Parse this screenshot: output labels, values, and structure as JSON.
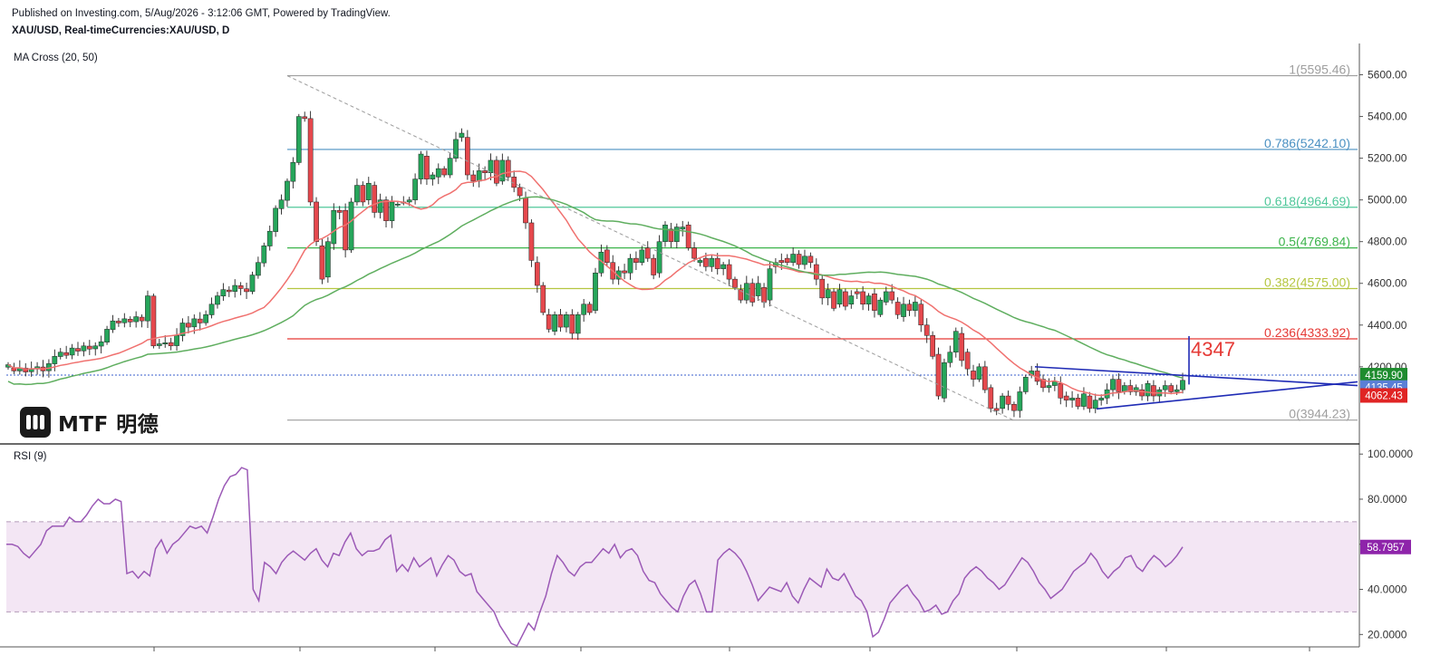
{
  "header": {
    "published": "Published on Investing.com, 5/Aug/2026 - 3:12:06 GMT, Powered by TradingView.",
    "symbol": "XAU/USD, Real-timeCurrencies:XAU/USD, D",
    "indicator": "MA Cross (20, 50)",
    "rsi_label": "RSI (9)"
  },
  "logo": {
    "text": "MTF 明德",
    "icon": "mtf-logo-icon"
  },
  "colors": {
    "up": "#26a65b",
    "down": "#e5484d",
    "ma20": "#f0716f",
    "ma50": "#5fae5f",
    "triangle": "#1f2bb5",
    "rsi": "#9b59b6",
    "rsi_band": "#f3e6f4",
    "fib_1": "#9e9e9e",
    "fib_786": "#4a90c2",
    "fib_618": "#4fc79a",
    "fib_5": "#3cb44b",
    "fib_382": "#b5c640",
    "fib_236": "#e53935",
    "fib_0": "#9e9e9e"
  },
  "annotation": {
    "target": "4347"
  },
  "price_badges": [
    {
      "value": "4159.90",
      "color": "#1e8c2e"
    },
    {
      "value": "4135.45",
      "color": "#5a7fd6"
    },
    {
      "value": "4062.43",
      "color": "#e02424"
    }
  ],
  "rsi_badge": {
    "value": "58.7957",
    "color": "#8e24aa"
  },
  "chart_data": {
    "type": "candlestick",
    "y_axis": {
      "min": 3830,
      "max": 5750,
      "ticks": [
        4200,
        4400,
        4600,
        4800,
        5000,
        5200,
        5400,
        5600
      ],
      "labels": [
        "4200.00",
        "4400.00",
        "4600.00",
        "4800.00",
        "5000.00",
        "5200.00",
        "5400.00",
        "5600.00"
      ]
    },
    "fibonacci": [
      {
        "label": "1(5595.46)",
        "value": 5595.46,
        "color": "#9e9e9e"
      },
      {
        "label": "0.786(5242.10)",
        "value": 5242.1,
        "color": "#4a90c2"
      },
      {
        "label": "0.618(4964.69)",
        "value": 4964.69,
        "color": "#4fc79a"
      },
      {
        "label": "0.5(4769.84)",
        "value": 4769.84,
        "color": "#3cb44b"
      },
      {
        "label": "0.382(4575.00)",
        "value": 4575.0,
        "color": "#b5c640"
      },
      {
        "label": "0.236(4333.92)",
        "value": 4333.92,
        "color": "#e53935"
      },
      {
        "label": "0(3944.23)",
        "value": 3944.23,
        "color": "#9e9e9e"
      }
    ],
    "candles": [
      [
        4198,
        4210
      ],
      [
        4195,
        4180
      ],
      [
        4180,
        4195
      ],
      [
        4194,
        4175
      ],
      [
        4176,
        4190
      ],
      [
        4189,
        4200
      ],
      [
        4199,
        4180
      ],
      [
        4181,
        4215
      ],
      [
        4214,
        4250
      ],
      [
        4249,
        4270
      ],
      [
        4268,
        4255
      ],
      [
        4256,
        4290
      ],
      [
        4288,
        4275
      ],
      [
        4276,
        4300
      ],
      [
        4299,
        4285
      ],
      [
        4286,
        4300
      ],
      [
        4299,
        4320
      ],
      [
        4318,
        4380
      ],
      [
        4378,
        4420
      ],
      [
        4419,
        4410
      ],
      [
        4411,
        4430
      ],
      [
        4428,
        4415
      ],
      [
        4416,
        4440
      ],
      [
        4438,
        4420
      ],
      [
        4420,
        4540
      ],
      [
        4539,
        4300
      ],
      [
        4301,
        4310
      ],
      [
        4309,
        4315
      ],
      [
        4316,
        4300
      ],
      [
        4301,
        4350
      ],
      [
        4349,
        4410
      ],
      [
        4409,
        4390
      ],
      [
        4391,
        4430
      ],
      [
        4429,
        4410
      ],
      [
        4411,
        4450
      ],
      [
        4449,
        4500
      ],
      [
        4499,
        4540
      ],
      [
        4539,
        4570
      ],
      [
        4568,
        4560
      ],
      [
        4561,
        4590
      ],
      [
        4589,
        4575
      ],
      [
        4574,
        4560
      ],
      [
        4561,
        4640
      ],
      [
        4638,
        4700
      ],
      [
        4698,
        4780
      ],
      [
        4779,
        4850
      ],
      [
        4848,
        4960
      ],
      [
        4958,
        5000
      ],
      [
        4998,
        5090
      ],
      [
        5089,
        5180
      ],
      [
        5179,
        5400
      ],
      [
        5399,
        5390
      ],
      [
        5390,
        4990
      ],
      [
        4990,
        4800
      ],
      [
        4780,
        4620
      ],
      [
        4630,
        4800
      ],
      [
        4790,
        4950
      ],
      [
        4950,
        4940
      ],
      [
        4950,
        4760
      ],
      [
        4760,
        4990
      ],
      [
        4990,
        5070
      ],
      [
        5070,
        4990
      ],
      [
        5000,
        5080
      ],
      [
        5070,
        4940
      ],
      [
        4940,
        5000
      ],
      [
        5000,
        4900
      ],
      [
        4900,
        4990
      ],
      [
        4980,
        4980
      ],
      [
        4990,
        4990
      ],
      [
        4990,
        5000
      ],
      [
        5000,
        5100
      ],
      [
        5100,
        5220
      ],
      [
        5210,
        5100
      ],
      [
        5100,
        5120
      ],
      [
        5110,
        5150
      ],
      [
        5150,
        5120
      ],
      [
        5120,
        5200
      ],
      [
        5200,
        5290
      ],
      [
        5300,
        5320
      ],
      [
        5300,
        5120
      ],
      [
        5120,
        5090
      ],
      [
        5090,
        5140
      ],
      [
        5140,
        5130
      ],
      [
        5130,
        5190
      ],
      [
        5190,
        5080
      ],
      [
        5090,
        5190
      ],
      [
        5190,
        5110
      ],
      [
        5110,
        5060
      ],
      [
        5060,
        5020
      ],
      [
        5010,
        4890
      ],
      [
        4890,
        4710
      ],
      [
        4700,
        4590
      ],
      [
        4590,
        4460
      ],
      [
        4450,
        4380
      ],
      [
        4370,
        4450
      ],
      [
        4450,
        4390
      ],
      [
        4390,
        4450
      ],
      [
        4450,
        4360
      ],
      [
        4360,
        4450
      ],
      [
        4450,
        4500
      ],
      [
        4500,
        4460
      ],
      [
        4470,
        4650
      ],
      [
        4650,
        4750
      ],
      [
        4760,
        4700
      ],
      [
        4700,
        4620
      ],
      [
        4620,
        4660
      ],
      [
        4660,
        4650
      ],
      [
        4650,
        4720
      ],
      [
        4720,
        4700
      ],
      [
        4700,
        4760
      ],
      [
        4770,
        4720
      ],
      [
        4720,
        4640
      ],
      [
        4650,
        4800
      ],
      [
        4800,
        4880
      ],
      [
        4860,
        4800
      ],
      [
        4800,
        4870
      ],
      [
        4860,
        4870
      ],
      [
        4880,
        4770
      ],
      [
        4770,
        4720
      ],
      [
        4700,
        4710
      ],
      [
        4720,
        4680
      ],
      [
        4680,
        4720
      ],
      [
        4720,
        4670
      ],
      [
        4670,
        4690
      ],
      [
        4690,
        4620
      ],
      [
        4620,
        4580
      ],
      [
        4570,
        4520
      ],
      [
        4520,
        4600
      ],
      [
        4600,
        4510
      ],
      [
        4540,
        4600
      ],
      [
        4580,
        4510
      ],
      [
        4520,
        4670
      ],
      [
        4680,
        4700
      ],
      [
        4710,
        4700
      ],
      [
        4720,
        4700
      ],
      [
        4700,
        4740
      ],
      [
        4740,
        4690
      ],
      [
        4690,
        4730
      ],
      [
        4730,
        4700
      ],
      [
        4690,
        4620
      ],
      [
        4620,
        4530
      ],
      [
        4530,
        4570
      ],
      [
        4560,
        4480
      ],
      [
        4500,
        4570
      ],
      [
        4560,
        4490
      ],
      [
        4500,
        4540
      ],
      [
        4560,
        4550
      ],
      [
        4560,
        4500
      ],
      [
        4500,
        4540
      ],
      [
        4550,
        4470
      ],
      [
        4450,
        4520
      ],
      [
        4510,
        4560
      ],
      [
        4560,
        4520
      ],
      [
        4510,
        4450
      ],
      [
        4440,
        4500
      ],
      [
        4500,
        4470
      ],
      [
        4470,
        4510
      ],
      [
        4500,
        4400
      ],
      [
        4400,
        4350
      ],
      [
        4350,
        4250
      ],
      [
        4260,
        4060
      ],
      [
        4050,
        4220
      ],
      [
        4220,
        4270
      ],
      [
        4270,
        4370
      ],
      [
        4360,
        4230
      ],
      [
        4270,
        4190
      ],
      [
        4180,
        4140
      ],
      [
        4140,
        4200
      ],
      [
        4200,
        4090
      ],
      [
        4100,
        4000
      ],
      [
        4000,
        3990
      ],
      [
        4000,
        4060
      ],
      [
        4060,
        4020
      ],
      [
        4020,
        3990
      ],
      [
        3990,
        4080
      ],
      [
        4080,
        4150
      ],
      [
        4160,
        4180
      ],
      [
        4180,
        4130
      ],
      [
        4140,
        4100
      ],
      [
        4100,
        4110
      ],
      [
        4110,
        4130
      ],
      [
        4120,
        4050
      ],
      [
        4060,
        4040
      ],
      [
        4040,
        4050
      ],
      [
        4050,
        4010
      ],
      [
        4010,
        4070
      ],
      [
        4060,
        4000
      ],
      [
        4000,
        4040
      ],
      [
        4040,
        4050
      ],
      [
        4050,
        4090
      ],
      [
        4090,
        4140
      ],
      [
        4140,
        4080
      ],
      [
        4080,
        4110
      ],
      [
        4110,
        4080
      ],
      [
        4080,
        4100
      ],
      [
        4090,
        4060
      ],
      [
        4060,
        4120
      ],
      [
        4110,
        4060
      ],
      [
        4060,
        4090
      ],
      [
        4090,
        4110
      ],
      [
        4110,
        4080
      ],
      [
        4080,
        4090
      ],
      [
        4090,
        4135
      ]
    ],
    "rsi": {
      "ticks": [
        20,
        40,
        60,
        80,
        100
      ],
      "labels": [
        "20.0000",
        "40.0000",
        "60.0000",
        "80.0000",
        "100.0000"
      ],
      "upper": 70,
      "lower": 30,
      "last": 58.7957,
      "values": [
        60,
        60,
        59,
        56,
        54,
        57,
        60,
        66,
        68,
        68,
        68,
        72,
        70,
        70,
        73,
        77,
        80,
        78,
        78,
        80,
        79,
        47,
        48,
        45,
        48,
        46,
        58,
        62,
        56,
        60,
        62,
        65,
        68,
        67,
        68,
        65,
        72,
        80,
        86,
        90,
        91,
        94,
        93,
        40,
        35,
        52,
        50,
        47,
        52,
        55,
        57,
        55,
        53,
        56,
        58,
        53,
        50,
        56,
        55,
        61,
        65,
        58,
        55,
        57,
        57,
        58,
        62,
        64,
        48,
        51,
        48,
        54,
        50,
        52,
        54,
        46,
        51,
        55,
        53,
        48,
        46,
        47,
        39,
        36,
        33,
        30,
        24,
        20,
        16,
        15,
        20,
        25,
        22,
        30,
        37,
        47,
        55,
        52,
        48,
        46,
        50,
        52,
        52,
        55,
        58,
        56,
        60,
        54,
        57,
        58,
        55,
        48,
        44,
        43,
        38,
        35,
        32,
        30,
        37,
        42,
        44,
        38,
        30,
        30,
        53,
        56,
        58,
        56,
        53,
        48,
        42,
        35,
        38,
        41,
        40,
        39,
        43,
        37,
        34,
        40,
        45,
        43,
        41,
        49,
        45,
        44,
        47,
        42,
        37,
        35,
        30,
        19,
        21,
        27,
        34,
        37,
        40,
        42,
        38,
        35,
        30,
        31,
        33,
        29,
        30,
        35,
        38,
        45,
        48,
        50,
        48,
        45,
        43,
        40,
        42,
        46,
        50,
        54,
        52,
        48,
        43,
        40,
        36,
        38,
        40,
        44,
        48,
        50,
        52,
        56,
        53,
        48,
        45,
        48,
        50,
        54,
        55,
        50,
        48,
        52,
        55,
        53,
        50,
        52,
        55,
        58.8
      ]
    }
  }
}
